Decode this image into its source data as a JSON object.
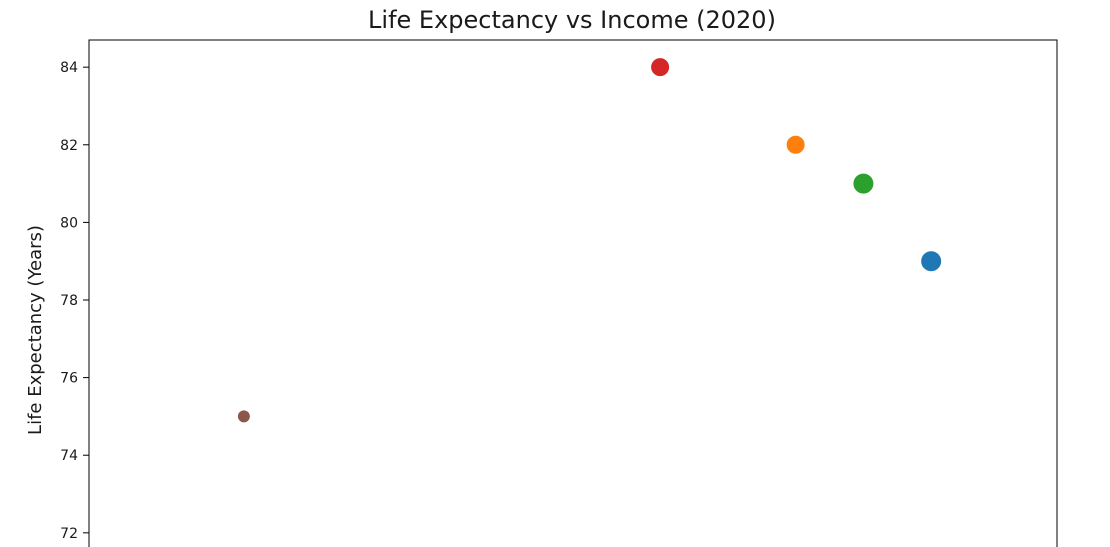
{
  "chart_data": {
    "type": "scatter",
    "title": "Life Expectancy vs Income (2020)",
    "xlabel": "",
    "ylabel": "Life Expectancy (Years)",
    "ylim": [
      71.3,
      84.7
    ],
    "xlim": [
      0,
      1
    ],
    "yticks": [
      72,
      74,
      76,
      78,
      80,
      82,
      84
    ],
    "grid": false,
    "points": [
      {
        "x": 0.16,
        "y": 75,
        "color": "#8c564b",
        "size": "small"
      },
      {
        "x": 0.59,
        "y": 84,
        "color": "#d62728",
        "size": "medium"
      },
      {
        "x": 0.73,
        "y": 82,
        "color": "#ff7f0e",
        "size": "medium"
      },
      {
        "x": 0.8,
        "y": 81,
        "color": "#2ca02c",
        "size": "large"
      },
      {
        "x": 0.87,
        "y": 79,
        "color": "#1f77b4",
        "size": "large"
      }
    ]
  }
}
